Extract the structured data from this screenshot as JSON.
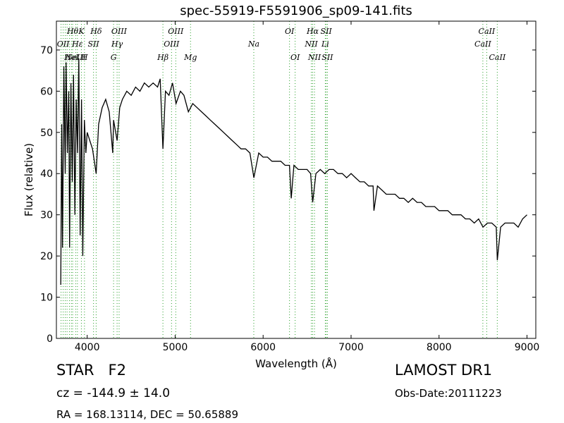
{
  "chart_data": {
    "type": "line",
    "title": "spec-55919-F5591906_sp09-141.fits",
    "xlabel": "Wavelength (Å)",
    "ylabel": "Flux (relative)",
    "xlim": [
      3650,
      9100
    ],
    "ylim": [
      0,
      77
    ],
    "xticks": [
      4000,
      5000,
      6000,
      7000,
      8000,
      9000
    ],
    "yticks": [
      0,
      10,
      20,
      30,
      40,
      50,
      60,
      70
    ],
    "grid": false,
    "line_color": "#000000",
    "marker_color": "#2ca02c",
    "series": [
      {
        "x": [
          3700,
          3710,
          3720,
          3735,
          3750,
          3760,
          3775,
          3790,
          3800,
          3815,
          3830,
          3845,
          3860,
          3875,
          3890,
          3905,
          3920,
          3935,
          3950,
          3968,
          3985,
          4000,
          4030,
          4060,
          4102,
          4130,
          4170,
          4210,
          4250,
          4290,
          4300,
          4340,
          4370,
          4400,
          4450,
          4500,
          4550,
          4600,
          4650,
          4700,
          4750,
          4800,
          4830,
          4861,
          4890,
          4930,
          4970,
          5010,
          5060,
          5100,
          5150,
          5200,
          5250,
          5300,
          5350,
          5400,
          5450,
          5500,
          5550,
          5600,
          5650,
          5700,
          5750,
          5800,
          5850,
          5895,
          5950,
          6000,
          6050,
          6100,
          6150,
          6200,
          6250,
          6300,
          6320,
          6350,
          6400,
          6450,
          6500,
          6540,
          6563,
          6600,
          6650,
          6700,
          6750,
          6800,
          6850,
          6900,
          6950,
          7000,
          7050,
          7100,
          7150,
          7200,
          7250,
          7260,
          7300,
          7350,
          7400,
          7450,
          7500,
          7550,
          7600,
          7650,
          7700,
          7750,
          7800,
          7850,
          7900,
          7950,
          8000,
          8050,
          8100,
          8150,
          8200,
          8250,
          8300,
          8350,
          8400,
          8450,
          8500,
          8550,
          8600,
          8650,
          8662,
          8700,
          8750,
          8800,
          8850,
          8900,
          8950,
          9000
        ],
        "y": [
          13,
          52,
          22,
          66,
          40,
          67,
          45,
          60,
          22,
          62,
          38,
          64,
          30,
          58,
          45,
          68,
          25,
          58,
          20,
          53,
          45,
          50,
          48,
          46,
          40,
          52,
          56,
          58,
          55,
          45,
          53,
          48,
          56,
          58,
          60,
          59,
          61,
          60,
          62,
          61,
          62,
          61,
          63,
          46,
          60,
          59,
          62,
          57,
          60,
          59,
          55,
          57,
          56,
          55,
          54,
          53,
          52,
          51,
          50,
          49,
          48,
          47,
          46,
          46,
          45,
          39,
          45,
          44,
          44,
          43,
          43,
          43,
          42,
          42,
          34,
          42,
          41,
          41,
          41,
          40,
          33,
          40,
          41,
          40,
          41,
          41,
          40,
          40,
          39,
          40,
          39,
          38,
          38,
          37,
          37,
          31,
          37,
          36,
          35,
          35,
          35,
          34,
          34,
          33,
          34,
          33,
          33,
          32,
          32,
          32,
          31,
          31,
          31,
          30,
          30,
          30,
          29,
          29,
          28,
          29,
          27,
          28,
          28,
          27,
          19,
          27,
          28,
          28,
          28,
          27,
          29,
          30
        ]
      }
    ],
    "lines": [
      {
        "x": 3703,
        "label": "",
        "row": 0
      },
      {
        "x": 3727,
        "label": "OII",
        "row": 1
      },
      {
        "x": 3750,
        "label": "",
        "row": 0
      },
      {
        "x": 3771,
        "label": "",
        "row": 0
      },
      {
        "x": 3798,
        "label": "",
        "row": 0
      },
      {
        "x": 3820,
        "label": "HeI",
        "row": 2
      },
      {
        "x": 3835,
        "label": "Hθ",
        "row": 0
      },
      {
        "x": 3869,
        "label": "NeIII",
        "row": 2
      },
      {
        "x": 3889,
        "label": "Hε",
        "row": 1
      },
      {
        "x": 3934,
        "label": "K",
        "row": 0
      },
      {
        "x": 3969,
        "label": "H",
        "row": 2
      },
      {
        "x": 4072,
        "label": "SII",
        "row": 1
      },
      {
        "x": 4102,
        "label": "Hδ",
        "row": 0
      },
      {
        "x": 4300,
        "label": "G",
        "row": 2
      },
      {
        "x": 4340,
        "label": "Hγ",
        "row": 1
      },
      {
        "x": 4363,
        "label": "OIII",
        "row": 0
      },
      {
        "x": 4861,
        "label": "Hβ",
        "row": 2
      },
      {
        "x": 4959,
        "label": "OIII",
        "row": 1
      },
      {
        "x": 5007,
        "label": "OIII",
        "row": 0
      },
      {
        "x": 5175,
        "label": "Mg",
        "row": 2
      },
      {
        "x": 5894,
        "label": "Na",
        "row": 1
      },
      {
        "x": 6300,
        "label": "OI",
        "row": 0
      },
      {
        "x": 6364,
        "label": "OI",
        "row": 2
      },
      {
        "x": 6548,
        "label": "NII",
        "row": 1
      },
      {
        "x": 6563,
        "label": "Hα",
        "row": 0
      },
      {
        "x": 6584,
        "label": "NII",
        "row": 2
      },
      {
        "x": 6707,
        "label": "Li",
        "row": 1
      },
      {
        "x": 6717,
        "label": "SII",
        "row": 0
      },
      {
        "x": 6731,
        "label": "SII",
        "row": 2
      },
      {
        "x": 8498,
        "label": "CaII",
        "row": 1
      },
      {
        "x": 8542,
        "label": "CaII",
        "row": 0
      },
      {
        "x": 8662,
        "label": "CaII",
        "row": 2
      }
    ]
  },
  "info": {
    "obj_class": "STAR   F2",
    "survey": "LAMOST DR1",
    "cz": "cz = -144.9 ± 14.0",
    "obs_date": "Obs-Date:20111223",
    "radec": "RA = 168.13114, DEC = 50.65889"
  }
}
